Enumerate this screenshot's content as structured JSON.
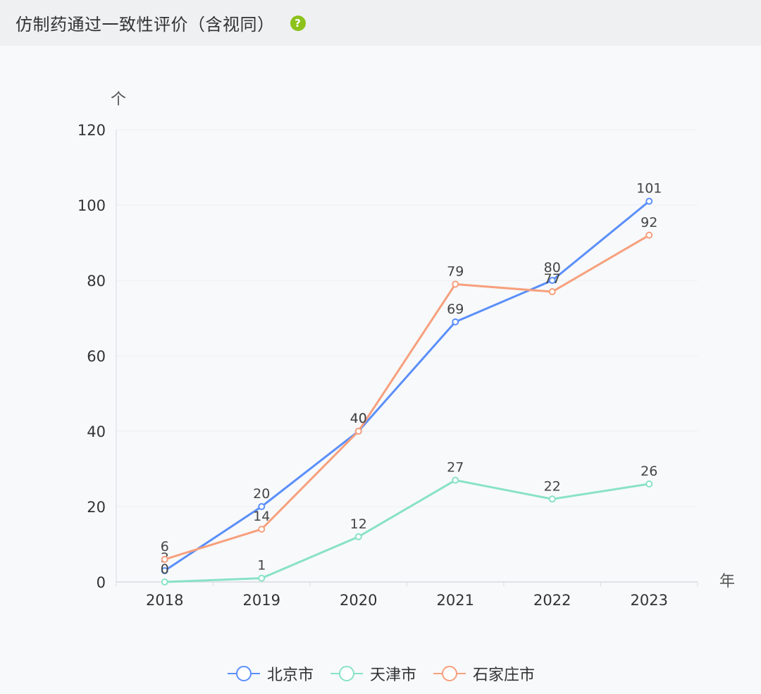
{
  "header": {
    "title": "仿制药通过一致性评价（含视同）",
    "help_icon": "?"
  },
  "chart_data": {
    "type": "line",
    "categories": [
      "2018",
      "2019",
      "2020",
      "2021",
      "2022",
      "2023"
    ],
    "series": [
      {
        "name": "北京市",
        "color": "#5b8ff9",
        "values": [
          3,
          20,
          40,
          69,
          80,
          101
        ]
      },
      {
        "name": "天津市",
        "color": "#88e2c6",
        "values": [
          0,
          1,
          12,
          27,
          22,
          26
        ]
      },
      {
        "name": "石家庄市",
        "color": "#f6a07d",
        "values": [
          6,
          14,
          40,
          79,
          77,
          92
        ]
      }
    ],
    "ylabel": "个",
    "xlabel": "年",
    "ylim": [
      0,
      120
    ],
    "yticks": [
      0,
      20,
      40,
      60,
      80,
      100,
      120
    ],
    "grid": true,
    "legend": "bottom-center"
  }
}
